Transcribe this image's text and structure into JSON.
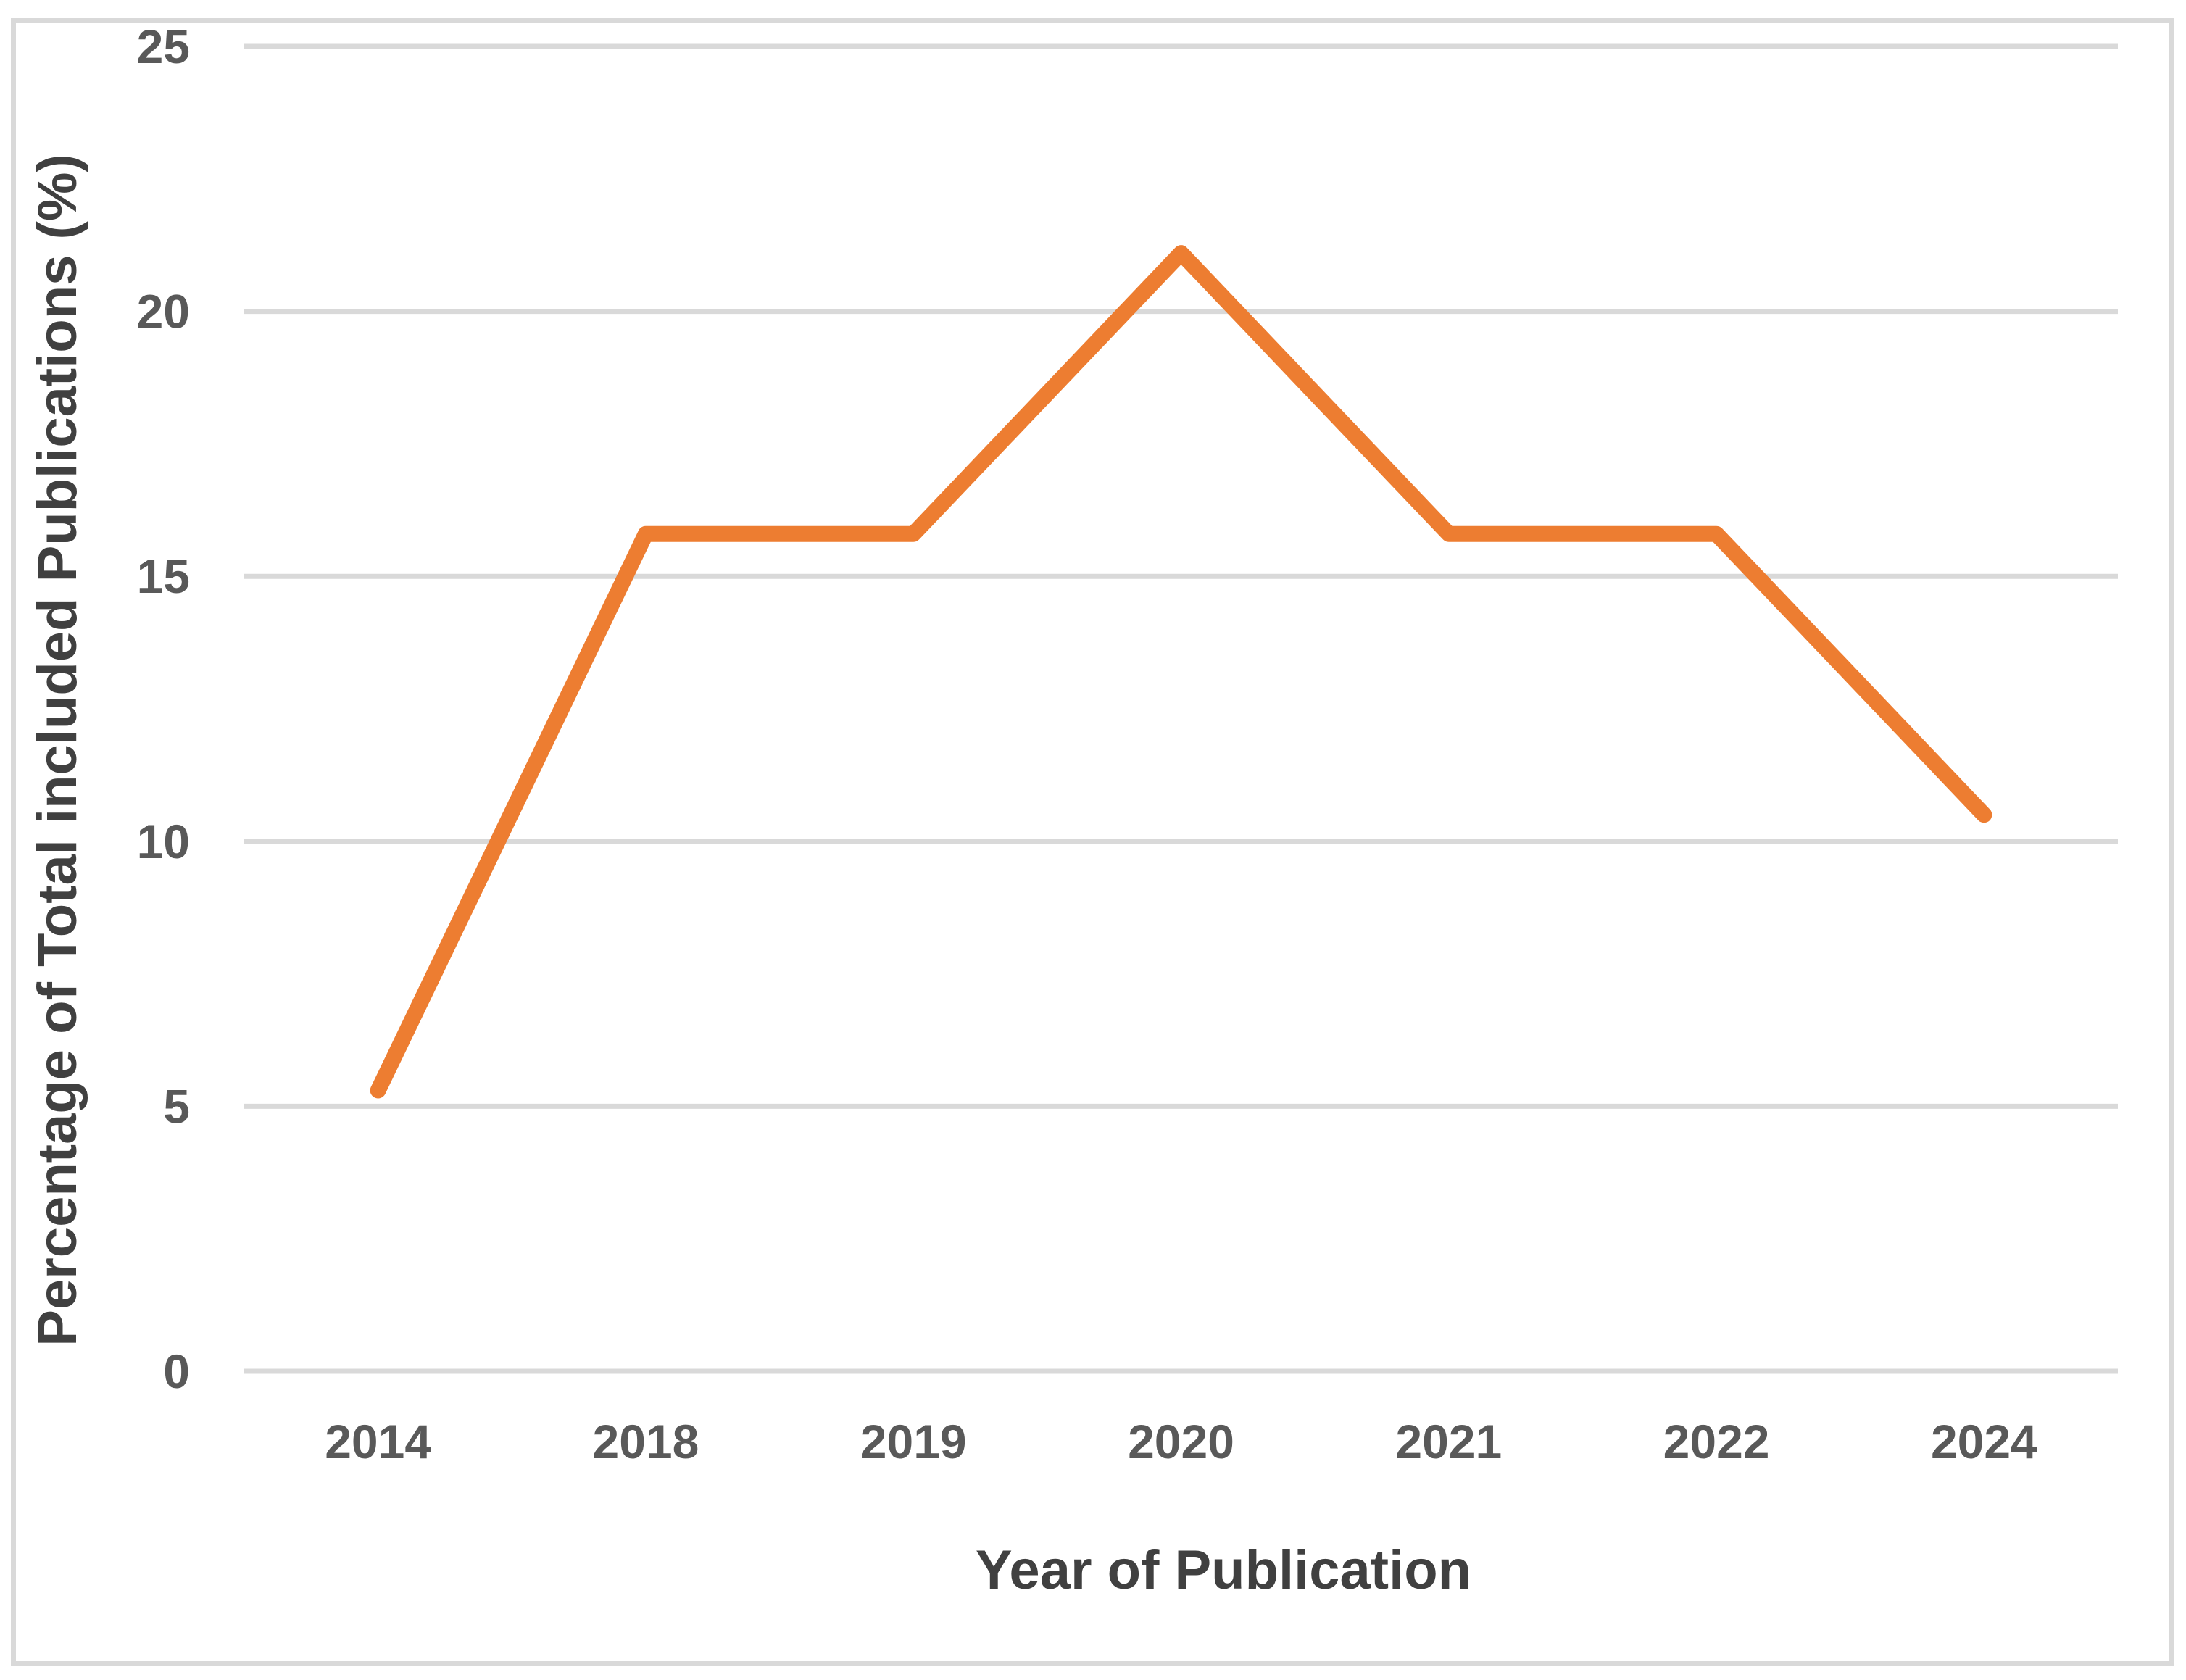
{
  "chart_data": {
    "type": "line",
    "title": "",
    "categories": [
      "2014",
      "2018",
      "2019",
      "2020",
      "2021",
      "2022",
      "2024"
    ],
    "series": [
      {
        "name": "Percentage of Total included Publications",
        "values": [
          5.3,
          15.8,
          15.8,
          21.1,
          15.8,
          15.8,
          10.5
        ]
      }
    ],
    "xlabel": "Year of Publication",
    "ylabel": "Percentage of Total included Publications (%)",
    "ylim": [
      0,
      25
    ],
    "yticks": [
      0,
      5,
      10,
      15,
      20,
      25
    ],
    "grid": "horizontal",
    "legend": "none",
    "markers": "none",
    "colors": {
      "line": "#ED7D31",
      "gridline": "#D9D9D9",
      "border": "#D9D9D9",
      "tick_text": "#595959",
      "axis_title_text": "#404040",
      "background": "#FFFFFF"
    }
  }
}
